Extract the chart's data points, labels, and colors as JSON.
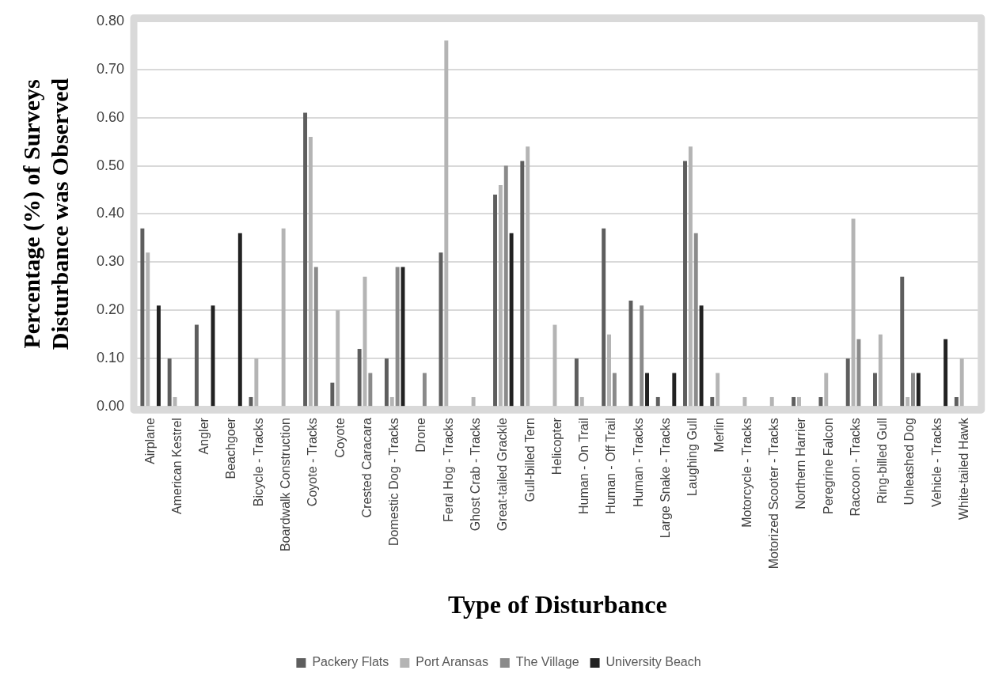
{
  "chart_data": {
    "type": "bar",
    "xlabel": "Type of Disturbance",
    "ylabel": "Percentage (%) of Surveys Disturbance was Observed",
    "categories": [
      "Airplane",
      "American Kestrel",
      "Angler",
      "Beachgoer",
      "Bicycle - Tracks",
      "Boardwalk Construction",
      "Coyote - Tracks",
      "Coyote",
      "Crested Caracara",
      "Domestic Dog - Tracks",
      "Drone",
      "Feral Hog - Tracks",
      "Ghost Crab - Tracks",
      "Great-tailed Grackle",
      "Gull-billed Tern",
      "Helicopter",
      "Human - On Trail",
      "Human - Off Trail",
      "Human - Tracks",
      "Large Snake - Tracks",
      "Laughing Gull",
      "Merlin",
      "Motorcycle - Tracks",
      "Motorized Scooter - Tracks",
      "Northern Harrier",
      "Peregrine Falcon",
      "Raccoon - Tracks",
      "Ring-billed Gull",
      "Unleashed Dog",
      "Vehicle - Tracks",
      "White-tailed Hawk"
    ],
    "series": [
      {
        "name": "Packery Flats",
        "color": "#5e5e5e",
        "values": [
          0.37,
          0.1,
          0.17,
          0,
          0.02,
          0,
          0.61,
          0.05,
          0.12,
          0.1,
          0,
          0.32,
          0,
          0.44,
          0.51,
          0,
          0.1,
          0.37,
          0.22,
          0.02,
          0.51,
          0.02,
          0,
          0,
          0.02,
          0.02,
          0.1,
          0.07,
          0.27,
          0,
          0.02
        ]
      },
      {
        "name": "Port Aransas",
        "color": "#b4b4b4",
        "values": [
          0.32,
          0.02,
          0,
          0,
          0.1,
          0.37,
          0.56,
          0.2,
          0.27,
          0.02,
          0,
          0.76,
          0.02,
          0.46,
          0.54,
          0.17,
          0.02,
          0.15,
          0,
          0,
          0.54,
          0.07,
          0.02,
          0.02,
          0.02,
          0.07,
          0.39,
          0.15,
          0.02,
          0,
          0.1
        ]
      },
      {
        "name": "The Village",
        "color": "#8a8a8a",
        "values": [
          0,
          0,
          0,
          0,
          0,
          0,
          0.29,
          0,
          0.07,
          0.29,
          0.07,
          0,
          0,
          0.5,
          0,
          0,
          0,
          0.07,
          0.21,
          0,
          0.36,
          0,
          0,
          0,
          0,
          0,
          0.14,
          0,
          0.07,
          0,
          0
        ]
      },
      {
        "name": "University Beach",
        "color": "#222222",
        "values": [
          0.21,
          0,
          0.21,
          0.36,
          0,
          0,
          0,
          0,
          0,
          0.29,
          0,
          0,
          0,
          0.36,
          0,
          0,
          0,
          0,
          0.07,
          0.07,
          0.21,
          0,
          0,
          0,
          0,
          0,
          0,
          0,
          0.07,
          0.14,
          0
        ]
      }
    ],
    "ylim": [
      0,
      0.8
    ],
    "yticks": [
      {
        "value": 0,
        "label": "0.00"
      },
      {
        "value": 0.1,
        "label": "0.10"
      },
      {
        "value": 0.2,
        "label": "0.20"
      },
      {
        "value": 0.3,
        "label": "0.30"
      },
      {
        "value": 0.4,
        "label": "0.40"
      },
      {
        "value": 0.5,
        "label": "0.50"
      },
      {
        "value": 0.6,
        "label": "0.60"
      },
      {
        "value": 0.7,
        "label": "0.70"
      },
      {
        "value": 0.8,
        "label": "0.80"
      }
    ],
    "grid": "y",
    "legend": "bottom"
  }
}
